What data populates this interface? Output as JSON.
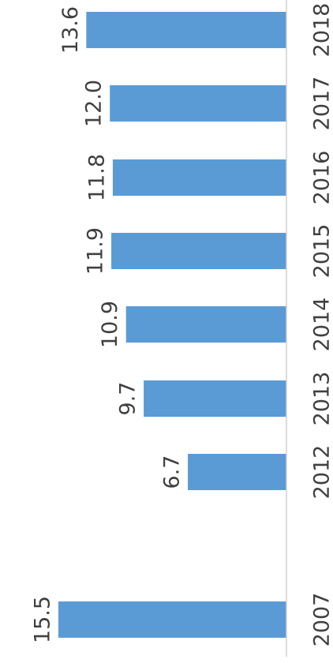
{
  "chart_data": {
    "type": "bar",
    "orientation": "horizontal",
    "categories": [
      "2018",
      "2017",
      "2016",
      "2015",
      "2014",
      "2013",
      "2012",
      "2007"
    ],
    "values": [
      13.6,
      12.0,
      11.8,
      11.9,
      10.9,
      9.7,
      6.7,
      15.5
    ],
    "value_labels": [
      "13.6",
      "12.0",
      "11.8",
      "11.9",
      "10.9",
      "9.7",
      "6.7",
      "15.5"
    ],
    "title": "",
    "xlabel": "",
    "ylabel": "",
    "xlim": [
      0,
      16
    ],
    "grid": false,
    "legend": "none",
    "bar_color": "#5b9bd5",
    "text_color": "#404040",
    "axis_color": "#d0d0d0"
  }
}
